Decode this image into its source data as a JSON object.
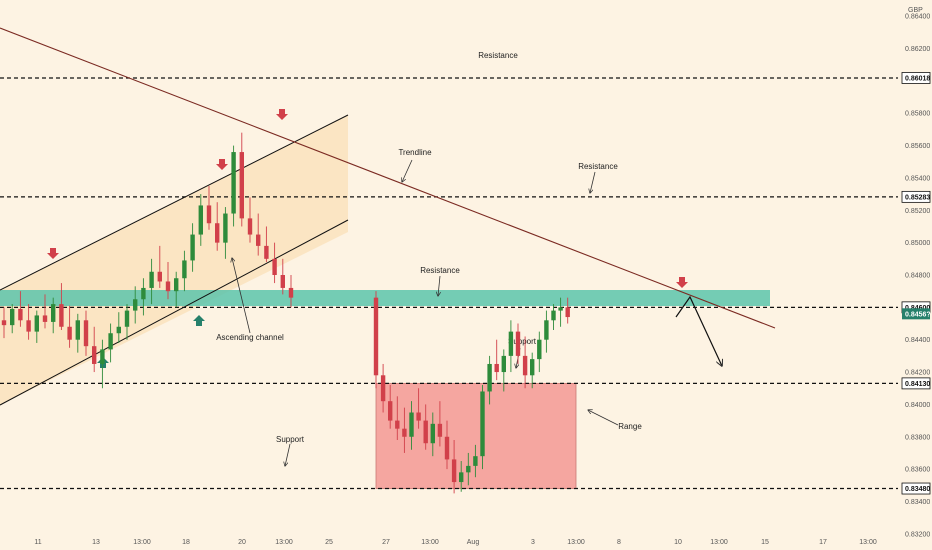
{
  "chart_data": {
    "type": "candlestick",
    "currency": "GBP",
    "ylim": [
      0.831,
      0.865
    ],
    "y_ticks": [
      "0.86400",
      "0.86200",
      "0.85800",
      "0.85600",
      "0.85400",
      "0.85200",
      "0.85000",
      "0.84800",
      "0.84400",
      "0.84200",
      "0.84000",
      "0.83800",
      "0.83600",
      "0.83400",
      "0.83200"
    ],
    "x_ticks": [
      "11",
      "13",
      "13:00",
      "18",
      "20",
      "13:00",
      "25",
      "27",
      "13:00",
      "Aug",
      "3",
      "13:00",
      "8",
      "10",
      "13:00",
      "15",
      "17",
      "13:00"
    ],
    "levels": [
      {
        "label": "0.86018",
        "value": 0.86018,
        "color": "#111111"
      },
      {
        "label": "0.85283",
        "value": 0.85283,
        "color": "#111111"
      },
      {
        "label": "0.84600",
        "value": 0.846,
        "color": "#111111"
      },
      {
        "label": "0.84130",
        "value": 0.8413,
        "color": "#111111"
      },
      {
        "label": "0.83480",
        "value": 0.8348,
        "color": "#111111"
      }
    ],
    "current_price": {
      "label": "0.8456?",
      "value": 0.8456,
      "color": "#26806b"
    },
    "annotations": [
      "Resistance",
      "Resistance",
      "Trendline",
      "Resistance",
      "Ascending channel",
      "Support",
      "Range",
      "Support"
    ],
    "candles": [
      [
        0.8452,
        0.846,
        0.8441,
        0.8449
      ],
      [
        0.8449,
        0.8462,
        0.8444,
        0.8459
      ],
      [
        0.8459,
        0.847,
        0.8448,
        0.8452
      ],
      [
        0.8452,
        0.8462,
        0.844,
        0.8445
      ],
      [
        0.8445,
        0.8458,
        0.8438,
        0.8455
      ],
      [
        0.8455,
        0.8468,
        0.8447,
        0.8451
      ],
      [
        0.8451,
        0.8466,
        0.8444,
        0.8462
      ],
      [
        0.8462,
        0.8475,
        0.8446,
        0.8448
      ],
      [
        0.8448,
        0.8461,
        0.8435,
        0.844
      ],
      [
        0.844,
        0.8456,
        0.8432,
        0.8452
      ],
      [
        0.8452,
        0.8458,
        0.843,
        0.8436
      ],
      [
        0.8436,
        0.8448,
        0.842,
        0.8425
      ],
      [
        0.8425,
        0.844,
        0.841,
        0.8434
      ],
      [
        0.8434,
        0.845,
        0.8426,
        0.8444
      ],
      [
        0.8444,
        0.8457,
        0.8438,
        0.8448
      ],
      [
        0.8448,
        0.8462,
        0.844,
        0.8458
      ],
      [
        0.8458,
        0.8473,
        0.845,
        0.8465
      ],
      [
        0.8465,
        0.8478,
        0.8455,
        0.8472
      ],
      [
        0.8472,
        0.849,
        0.8462,
        0.8482
      ],
      [
        0.8482,
        0.8498,
        0.8472,
        0.8476
      ],
      [
        0.8476,
        0.8488,
        0.8465,
        0.847
      ],
      [
        0.847,
        0.8482,
        0.846,
        0.8478
      ],
      [
        0.8478,
        0.8495,
        0.847,
        0.8489
      ],
      [
        0.8489,
        0.8512,
        0.8482,
        0.8505
      ],
      [
        0.8505,
        0.853,
        0.8498,
        0.8523
      ],
      [
        0.8523,
        0.8535,
        0.8508,
        0.8512
      ],
      [
        0.8512,
        0.8525,
        0.8495,
        0.85
      ],
      [
        0.85,
        0.8522,
        0.849,
        0.8518
      ],
      [
        0.8518,
        0.856,
        0.851,
        0.8556
      ],
      [
        0.8556,
        0.8568,
        0.851,
        0.8515
      ],
      [
        0.8515,
        0.8528,
        0.85,
        0.8505
      ],
      [
        0.8505,
        0.8518,
        0.8492,
        0.8498
      ],
      [
        0.8498,
        0.851,
        0.8488,
        0.849
      ],
      [
        0.849,
        0.85,
        0.8475,
        0.848
      ],
      [
        0.848,
        0.849,
        0.8468,
        0.8472
      ],
      [
        0.8472,
        0.848,
        0.846,
        0.8466
      ],
      [
        0.8466,
        0.847,
        0.841,
        0.8418
      ],
      [
        0.8418,
        0.8425,
        0.8395,
        0.8402
      ],
      [
        0.8402,
        0.8412,
        0.8385,
        0.839
      ],
      [
        0.839,
        0.8405,
        0.8378,
        0.8385
      ],
      [
        0.8385,
        0.8398,
        0.837,
        0.838
      ],
      [
        0.838,
        0.8402,
        0.8372,
        0.8395
      ],
      [
        0.8395,
        0.841,
        0.8385,
        0.839
      ],
      [
        0.839,
        0.84,
        0.8372,
        0.8376
      ],
      [
        0.8376,
        0.8395,
        0.8368,
        0.8388
      ],
      [
        0.8388,
        0.8402,
        0.8374,
        0.838
      ],
      [
        0.838,
        0.839,
        0.836,
        0.8366
      ],
      [
        0.8366,
        0.8378,
        0.8345,
        0.8352
      ],
      [
        0.8352,
        0.8365,
        0.8346,
        0.8358
      ],
      [
        0.8358,
        0.837,
        0.835,
        0.8362
      ],
      [
        0.8362,
        0.8375,
        0.8355,
        0.8368
      ],
      [
        0.8368,
        0.8412,
        0.836,
        0.8408
      ],
      [
        0.8408,
        0.843,
        0.84,
        0.8425
      ],
      [
        0.8425,
        0.844,
        0.8415,
        0.842
      ],
      [
        0.842,
        0.8434,
        0.8408,
        0.843
      ],
      [
        0.843,
        0.8452,
        0.842,
        0.8445
      ],
      [
        0.8445,
        0.845,
        0.8425,
        0.843
      ],
      [
        0.843,
        0.8442,
        0.841,
        0.8418
      ],
      [
        0.8418,
        0.8432,
        0.841,
        0.8428
      ],
      [
        0.8428,
        0.8445,
        0.842,
        0.844
      ],
      [
        0.844,
        0.8458,
        0.8432,
        0.8452
      ],
      [
        0.8452,
        0.8462,
        0.8446,
        0.8458
      ],
      [
        0.8458,
        0.8466,
        0.8448,
        0.846
      ],
      [
        0.846,
        0.8466,
        0.845,
        0.8454
      ]
    ],
    "grid": false
  }
}
